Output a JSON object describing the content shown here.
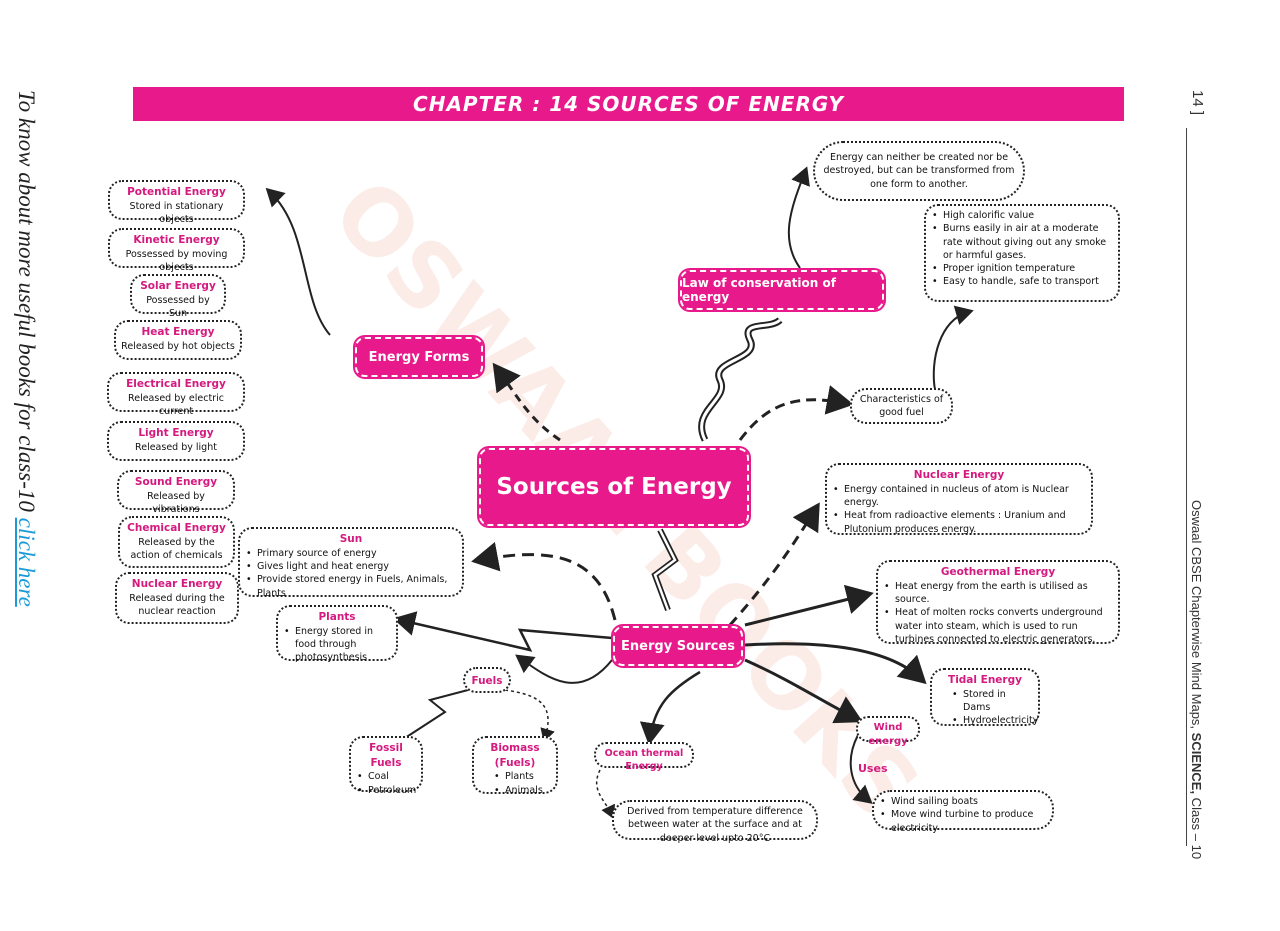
{
  "side": {
    "left_text": "To know about more useful books for class-10",
    "left_link": "click here",
    "page_number": "14 ]",
    "right_prefix": "Oswaal CBSE Chapterwise Mind Maps, ",
    "right_bold": "SCIENCE,",
    "right_suffix": " Class – 10"
  },
  "banner": "CHAPTER : 14 SOURCES OF ENERGY",
  "center": "Sources of Energy",
  "energy_forms": {
    "label": "Energy Forms",
    "items": [
      {
        "title": "Potential Energy",
        "desc": "Stored in stationary objects"
      },
      {
        "title": "Kinetic Energy",
        "desc": "Possessed by moving objects"
      },
      {
        "title": "Solar Energy",
        "desc": "Possessed by Sun"
      },
      {
        "title": "Heat Energy",
        "desc": "Released by hot objects"
      },
      {
        "title": "Electrical Energy",
        "desc": "Released by electric current"
      },
      {
        "title": "Light Energy",
        "desc": "Released by light"
      },
      {
        "title": "Sound Energy",
        "desc": "Released by vibrations"
      },
      {
        "title": "Chemical Energy",
        "desc": "Released by the action of chemicals"
      },
      {
        "title": "Nuclear Energy",
        "desc": "Released during the nuclear reaction"
      }
    ]
  },
  "law": {
    "label": "Law of conservation of energy",
    "statement": "Energy can neither be created nor be destroyed, but can be transformed from one form to another."
  },
  "good_fuel": {
    "label": "Characteristics of good fuel",
    "points": [
      "High calorific value",
      "Burns easily in air at a moderate rate without giving out any smoke or harmful gases.",
      "Proper ignition temperature",
      "Easy to handle, safe to transport"
    ]
  },
  "sources": {
    "label": "Energy Sources",
    "sun": {
      "title": "Sun",
      "points": [
        "Primary source of energy",
        "Gives light and heat energy",
        "Provide stored energy in Fuels, Animals, Plants"
      ]
    },
    "plants": {
      "title": "Plants",
      "points": [
        "Energy stored in food through photosynthesis"
      ]
    },
    "fuels": "Fuels",
    "fossil": {
      "title": "Fossil Fuels",
      "points": [
        "Coal",
        "Petroleum"
      ]
    },
    "biomass": {
      "title": "Biomass (Fuels)",
      "points": [
        "Plants",
        "Animals"
      ]
    },
    "ocean": {
      "title": "Ocean thermal Energy",
      "desc": "Derived from temperature difference between water at the surface and at deeper level upto 20°C"
    },
    "nuclear": {
      "title": "Nuclear Energy",
      "points": [
        "Energy contained in nucleus of atom is Nuclear energy.",
        "Heat from radioactive elements : Uranium and Plutonium produces energy."
      ]
    },
    "geothermal": {
      "title": "Geothermal Energy",
      "points": [
        "Heat energy from the earth is utilised as source.",
        "Heat of molten rocks converts underground water into steam, which is used to run turbines connected to electric generators."
      ]
    },
    "tidal": {
      "title": "Tidal Energy",
      "points": [
        "Stored in Dams",
        "Hydroelectricity"
      ]
    },
    "wind": {
      "title": "Wind energy",
      "uses_label": "Uses",
      "uses": [
        "Wind sailing boats",
        "Move wind turbine to produce electricity"
      ]
    }
  },
  "watermark": "OSWAAL BOOKS",
  "colors": {
    "accent": "#e8198b",
    "link": "#1a9bd7"
  }
}
